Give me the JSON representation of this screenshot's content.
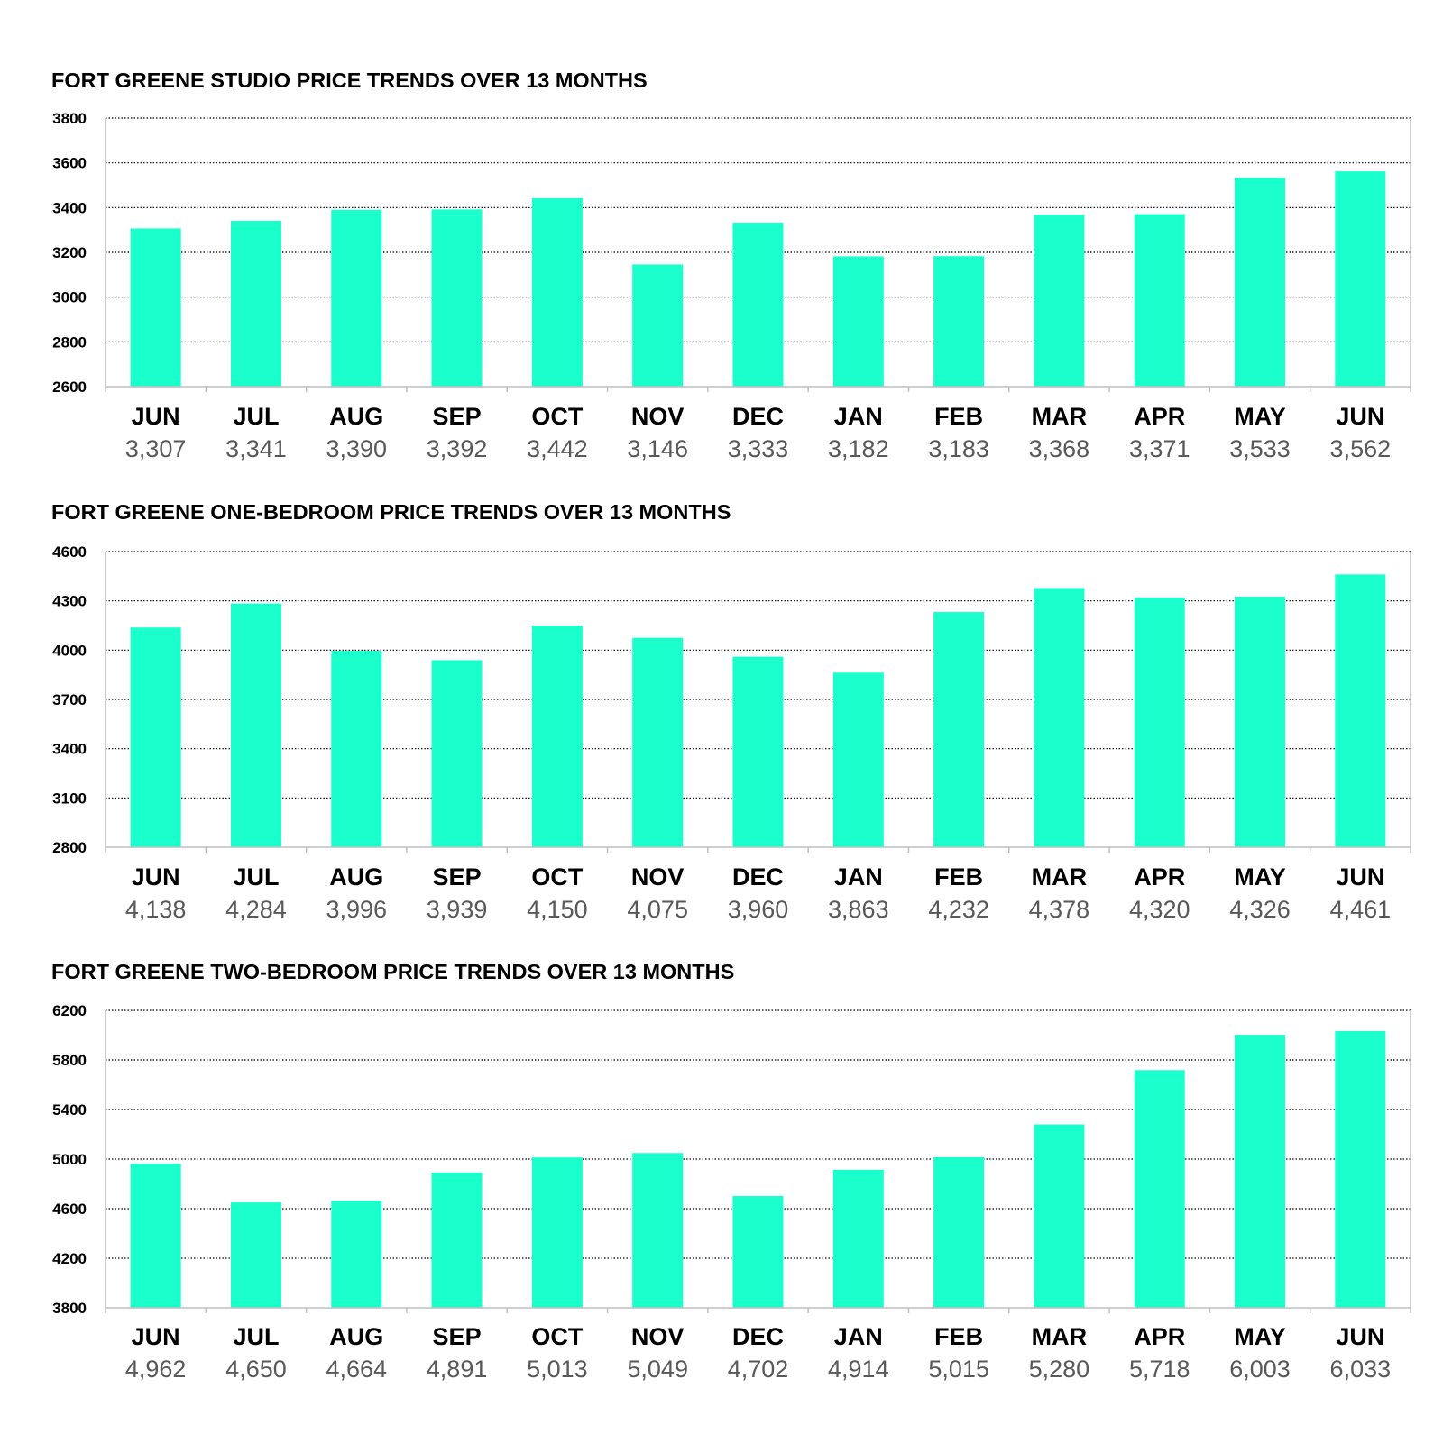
{
  "colors": {
    "bar": "#1bffcc",
    "grid": "#000000",
    "axis": "#bfbfbf",
    "value_text": "#595959"
  },
  "chart_data": [
    {
      "type": "bar",
      "title": "FORT GREENE STUDIO PRICE TRENDS OVER 13 MONTHS",
      "categories": [
        "JUN",
        "JUL",
        "AUG",
        "SEP",
        "OCT",
        "NOV",
        "DEC",
        "JAN",
        "FEB",
        "MAR",
        "APR",
        "MAY",
        "JUN"
      ],
      "values": [
        3307,
        3341,
        3390,
        3392,
        3442,
        3146,
        3333,
        3182,
        3183,
        3368,
        3371,
        3533,
        3562
      ],
      "value_labels": [
        "3,307",
        "3,341",
        "3,390",
        "3,392",
        "3,442",
        "3,146",
        "3,333",
        "3,182",
        "3,183",
        "3,368",
        "3,371",
        "3,533",
        "3,562"
      ],
      "ylim": [
        2600,
        3800
      ],
      "yticks": [
        2600,
        2800,
        3000,
        3200,
        3400,
        3600,
        3800
      ],
      "grid": true
    },
    {
      "type": "bar",
      "title": "FORT GREENE ONE-BEDROOM PRICE TRENDS OVER 13 MONTHS",
      "categories": [
        "JUN",
        "JUL",
        "AUG",
        "SEP",
        "OCT",
        "NOV",
        "DEC",
        "JAN",
        "FEB",
        "MAR",
        "APR",
        "MAY",
        "JUN"
      ],
      "values": [
        4138,
        4284,
        3996,
        3939,
        4150,
        4075,
        3960,
        3863,
        4232,
        4378,
        4320,
        4326,
        4461
      ],
      "value_labels": [
        "4,138",
        "4,284",
        "3,996",
        "3,939",
        "4,150",
        "4,075",
        "3,960",
        "3,863",
        "4,232",
        "4,378",
        "4,320",
        "4,326",
        "4,461"
      ],
      "ylim": [
        2800,
        4600
      ],
      "yticks": [
        2800,
        3100,
        3400,
        3700,
        4000,
        4300,
        4600
      ],
      "grid": true
    },
    {
      "type": "bar",
      "title": "FORT GREENE TWO-BEDROOM PRICE TRENDS OVER 13 MONTHS",
      "categories": [
        "JUN",
        "JUL",
        "AUG",
        "SEP",
        "OCT",
        "NOV",
        "DEC",
        "JAN",
        "FEB",
        "MAR",
        "APR",
        "MAY",
        "JUN"
      ],
      "values": [
        4962,
        4650,
        4664,
        4891,
        5013,
        5049,
        4702,
        4914,
        5015,
        5280,
        5718,
        6003,
        6033
      ],
      "value_labels": [
        "4,962",
        "4,650",
        "4,664",
        "4,891",
        "5,013",
        "5,049",
        "4,702",
        "4,914",
        "5,015",
        "5,280",
        "5,718",
        "6,003",
        "6,033"
      ],
      "ylim": [
        3800,
        6200
      ],
      "yticks": [
        3800,
        4200,
        4600,
        5000,
        5400,
        5800,
        6200
      ],
      "grid": true
    }
  ]
}
